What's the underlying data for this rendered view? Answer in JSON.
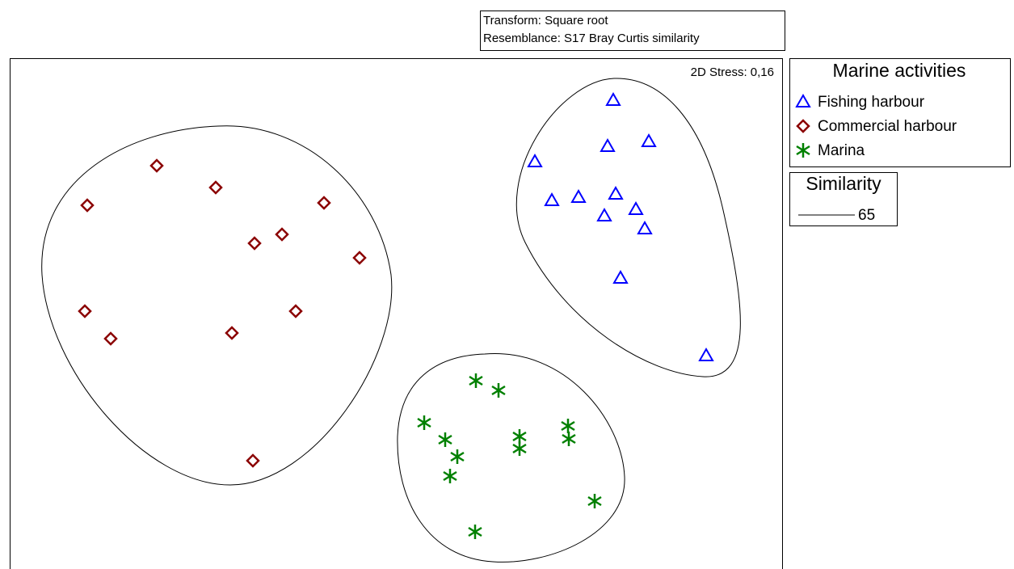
{
  "chart_data": {
    "type": "scatter",
    "notes": [
      "Transform: Square root",
      "Resemblance: S17 Bray Curtis similarity"
    ],
    "stress": "2D Stress: 0,16",
    "legend_title": "Marine activities",
    "xlim": [
      0,
      956
    ],
    "ylim": [
      0,
      632
    ],
    "series": [
      {
        "name": "Fishing harbour",
        "color": "#0000ff",
        "marker": "triangle",
        "x": [
          747,
          740,
          791,
          650,
          671,
          704,
          750,
          736,
          775,
          786,
          756,
          862
        ],
        "y": [
          580,
          523,
          529,
          504,
          456,
          460,
          464,
          437,
          445,
          421,
          360,
          264
        ]
      },
      {
        "name": "Commercial harbour",
        "color": "#8b0000",
        "marker": "diamond",
        "x": [
          182,
          255,
          96,
          389,
          337,
          303,
          433,
          93,
          354,
          125,
          275,
          301
        ],
        "y": [
          499,
          472,
          450,
          453,
          414,
          403,
          385,
          319,
          319,
          285,
          292,
          134
        ]
      },
      {
        "name": "Marina",
        "color": "#008000",
        "marker": "star",
        "x": [
          577,
          605,
          513,
          539,
          554,
          545,
          631,
          631,
          691,
          692,
          724,
          576
        ],
        "y": [
          233,
          221,
          181,
          160,
          139,
          115,
          164,
          149,
          177,
          161,
          84,
          46
        ]
      }
    ],
    "similarity": {
      "title": "Similarity",
      "levels": [
        65
      ]
    }
  }
}
